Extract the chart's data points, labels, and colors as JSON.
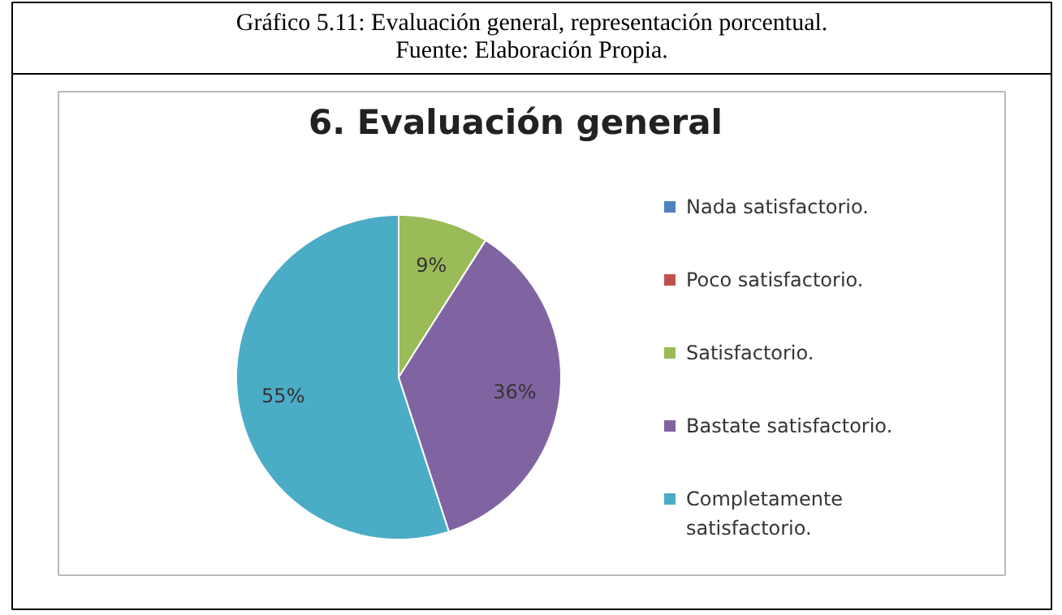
{
  "chart_data": {
    "type": "pie",
    "title": "6. Evaluación general",
    "annotations": [
      "Gráfico 5.11: Evaluación general, representación porcentual.",
      "Fuente: Elaboración Propia."
    ],
    "categories": [
      "Nada satisfactorio.",
      "Poco satisfactorio.",
      "Satisfactorio.",
      "Bastate satisfactorio.",
      "Completamente satisfactorio."
    ],
    "values": [
      0,
      0,
      9,
      36,
      55
    ],
    "colors": [
      "#4f81bd",
      "#c0504d",
      "#9bbb59",
      "#8064a2",
      "#4bacc6"
    ],
    "value_labels": [
      null,
      null,
      "9%",
      "36%",
      "55%"
    ],
    "legend": "right"
  }
}
